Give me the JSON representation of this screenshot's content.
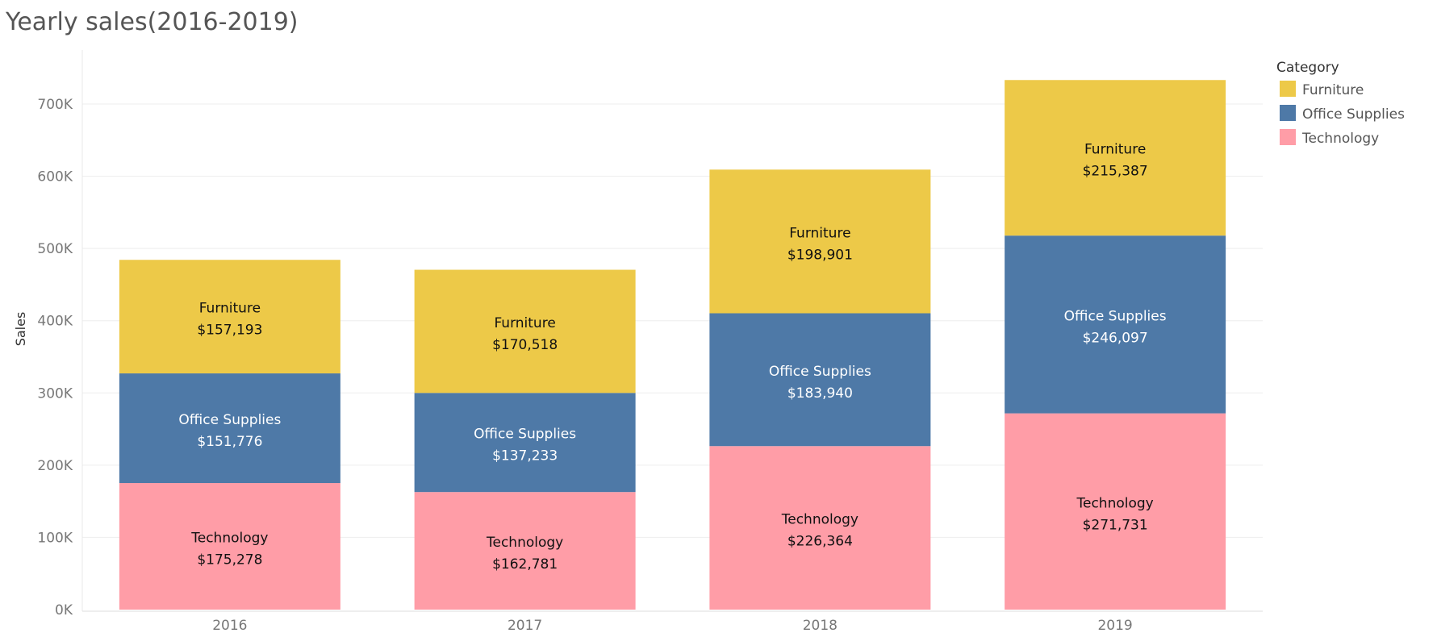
{
  "chart_data": {
    "type": "bar",
    "stacked": true,
    "title": "Yearly sales(2016-2019)",
    "xlabel": "",
    "ylabel": "Sales",
    "ylim": [
      0,
      750000
    ],
    "yticks": [
      0,
      100000,
      200000,
      300000,
      400000,
      500000,
      600000,
      700000
    ],
    "ytick_labels": [
      "0K",
      "100K",
      "200K",
      "300K",
      "400K",
      "500K",
      "600K",
      "700K"
    ],
    "grid": true,
    "legend_position": "top-right",
    "legend_title": "Category",
    "categories": [
      "2016",
      "2017",
      "2018",
      "2019"
    ],
    "series": [
      {
        "name": "Technology",
        "color": "#FF9DA7",
        "label_color": "#111111",
        "values": [
          175278,
          162781,
          226364,
          271731
        ],
        "value_labels": [
          "$175,278",
          "$162,781",
          "$226,364",
          "$271,731"
        ]
      },
      {
        "name": "Office Supplies",
        "color": "#4E79A7",
        "label_color": "#ffffff",
        "values": [
          151776,
          137233,
          183940,
          246097
        ],
        "value_labels": [
          "$151,776",
          "$137,233",
          "$183,940",
          "$246,097"
        ]
      },
      {
        "name": "Furniture",
        "color": "#EDC948",
        "label_color": "#111111",
        "values": [
          157193,
          170518,
          198901,
          215387
        ],
        "value_labels": [
          "$157,193",
          "$170,518",
          "$198,901",
          "$215,387"
        ]
      }
    ],
    "legend_order": [
      "Furniture",
      "Office Supplies",
      "Technology"
    ]
  }
}
